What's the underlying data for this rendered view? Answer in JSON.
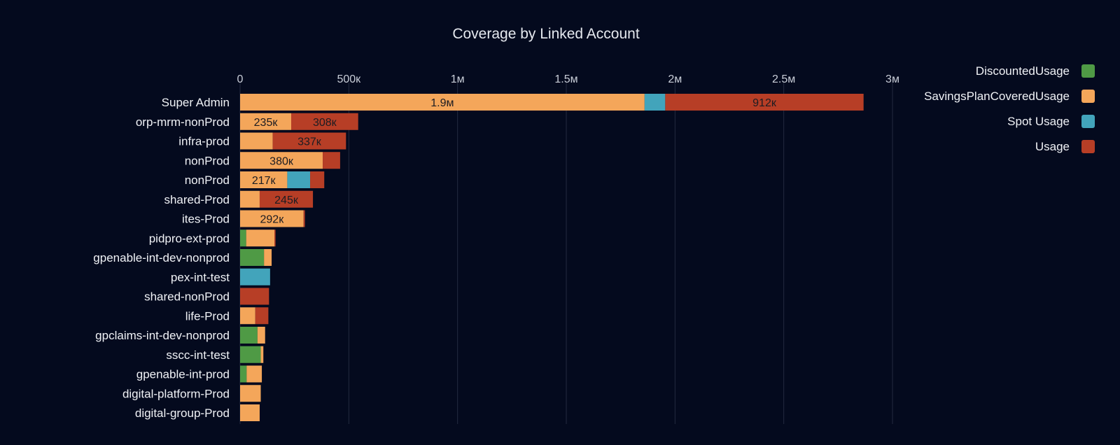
{
  "chart_data": {
    "type": "bar",
    "orientation": "horizontal",
    "stacked": true,
    "title": "Coverage by Linked Account",
    "xlabel": "",
    "ylabel": "",
    "xlim": [
      0,
      3000000
    ],
    "x_ticks": [
      {
        "value": 0,
        "label": "0"
      },
      {
        "value": 500000,
        "label": "500к"
      },
      {
        "value": 1000000,
        "label": "1м"
      },
      {
        "value": 1500000,
        "label": "1.5м"
      },
      {
        "value": 2000000,
        "label": "2м"
      },
      {
        "value": 2500000,
        "label": "2.5м"
      },
      {
        "value": 3000000,
        "label": "3м"
      }
    ],
    "grid": true,
    "legend_position": "top-right",
    "categories": [
      "Super Admin",
      "orp-mrm-nonProd",
      "infra-prod",
      "nonProd",
      "nonProd",
      "shared-Prod",
      "ites-Prod",
      "pidpro-ext-prod",
      "gpenable-int-dev-nonprod",
      "pex-int-test",
      "shared-nonProd",
      "life-Prod",
      "gpclaims-int-dev-nonprod",
      "sscc-int-test",
      "gpenable-int-prod",
      "digital-platform-Prod",
      "digital-group-Prod"
    ],
    "series": [
      {
        "name": "DiscountedUsage",
        "color": "#4f9a45",
        "values": [
          0,
          0,
          0,
          0,
          0,
          0,
          0,
          28000,
          110000,
          0,
          0,
          0,
          80000,
          95000,
          30000,
          0,
          0
        ],
        "labels": [
          "",
          "",
          "",
          "",
          "",
          "",
          "",
          "",
          "",
          "",
          "",
          "",
          "",
          "",
          "",
          "",
          ""
        ]
      },
      {
        "name": "SavingsPlanCoveredUsage",
        "color": "#f4a65a",
        "values": [
          1860000,
          235000,
          150000,
          380000,
          217000,
          90000,
          292000,
          130000,
          35000,
          0,
          0,
          70000,
          35000,
          12000,
          70000,
          95000,
          90000
        ],
        "labels": [
          "1.9м",
          "235к",
          "",
          "380к",
          "217к",
          "",
          "292к",
          "",
          "",
          "",
          "",
          "",
          "",
          "",
          "",
          "",
          ""
        ]
      },
      {
        "name": "Spot Usage",
        "color": "#42a4bb",
        "values": [
          95000,
          0,
          0,
          0,
          105000,
          0,
          0,
          0,
          0,
          138000,
          0,
          0,
          0,
          0,
          0,
          0,
          0
        ],
        "labels": [
          "",
          "",
          "",
          "",
          "",
          "",
          "",
          "",
          "",
          "",
          "",
          "",
          "",
          "",
          "",
          "",
          ""
        ]
      },
      {
        "name": "Usage",
        "color": "#b73e26",
        "values": [
          912000,
          308000,
          337000,
          80000,
          65000,
          245000,
          6000,
          5000,
          0,
          0,
          133000,
          60000,
          0,
          0,
          0,
          0,
          0
        ],
        "labels": [
          "912к",
          "308к",
          "337к",
          "",
          "",
          "245к",
          "",
          "",
          "",
          "",
          "",
          "",
          "",
          "",
          "",
          "",
          ""
        ]
      }
    ]
  }
}
